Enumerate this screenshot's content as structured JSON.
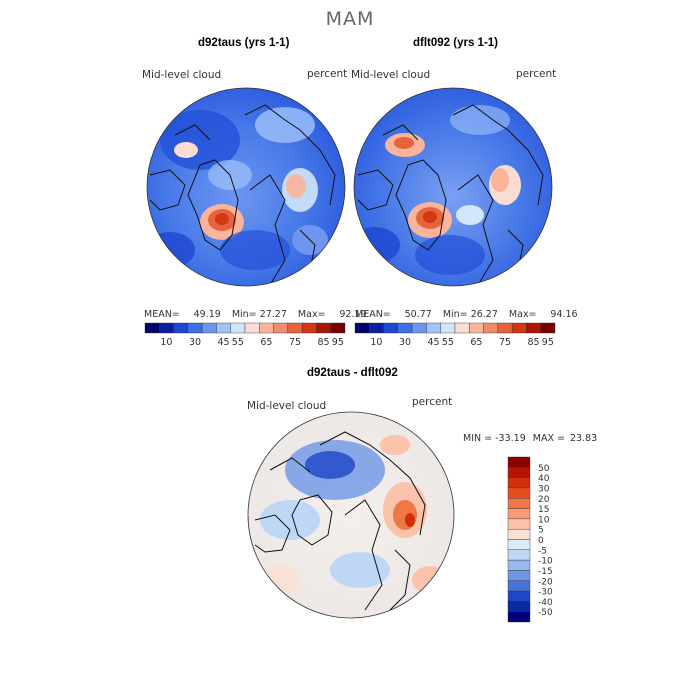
{
  "title": "MAM",
  "panels": [
    {
      "title": "d92taus (yrs 1-1)",
      "variable": "Mid-level cloud",
      "units": "percent",
      "stats": {
        "mean_label": "MEAN=",
        "mean": "49.19",
        "min_label": "Min=",
        "min": "27.27",
        "max_label": "Max=",
        "max": "92.19"
      }
    },
    {
      "title": "dflt092 (yrs 1-1)",
      "variable": "Mid-level cloud",
      "units": "percent",
      "stats": {
        "mean_label": "MEAN=",
        "mean": "50.77",
        "min_label": "Min=",
        "min": "26.27",
        "max_label": "Max=",
        "max": "94.16"
      }
    }
  ],
  "top_colorbar": {
    "colors": [
      "#00006e",
      "#0a1e9e",
      "#1e46d2",
      "#3c6ee6",
      "#6e96f0",
      "#a0c3fa",
      "#d2e6fa",
      "#fadcd2",
      "#fab49b",
      "#f08c6e",
      "#e6643c",
      "#d23714",
      "#aa1400",
      "#780000"
    ],
    "labels": [
      "10",
      "30",
      "45",
      "55",
      "65",
      "75",
      "85",
      "95"
    ]
  },
  "diff_panel": {
    "title": "d92taus - dflt092",
    "variable": "Mid-level cloud",
    "units": "percent",
    "stats": {
      "min_label": "MIN =",
      "min": "-33.19",
      "max_label": "MAX =",
      "max": "23.83"
    }
  },
  "diff_colorbar": {
    "colors_top_to_bottom": [
      "#8c0000",
      "#b41400",
      "#d2300a",
      "#e6501e",
      "#f07846",
      "#fa9b78",
      "#fac3aa",
      "#fae1d7",
      "#dceaf8",
      "#bed7f5",
      "#96b9f0",
      "#6e96e6",
      "#4673dc",
      "#1e46c8",
      "#0a28a0",
      "#00007d"
    ],
    "labels_top_to_bottom": [
      "50",
      "40",
      "30",
      "20",
      "15",
      "10",
      "5",
      "0",
      "-5",
      "-10",
      "-15",
      "-20",
      "-30",
      "-40",
      "-50"
    ]
  },
  "colors": {
    "map_blue": "#3c6ee6",
    "map_red": "#d2300a",
    "diff_neutral": "#f2f0ee"
  }
}
